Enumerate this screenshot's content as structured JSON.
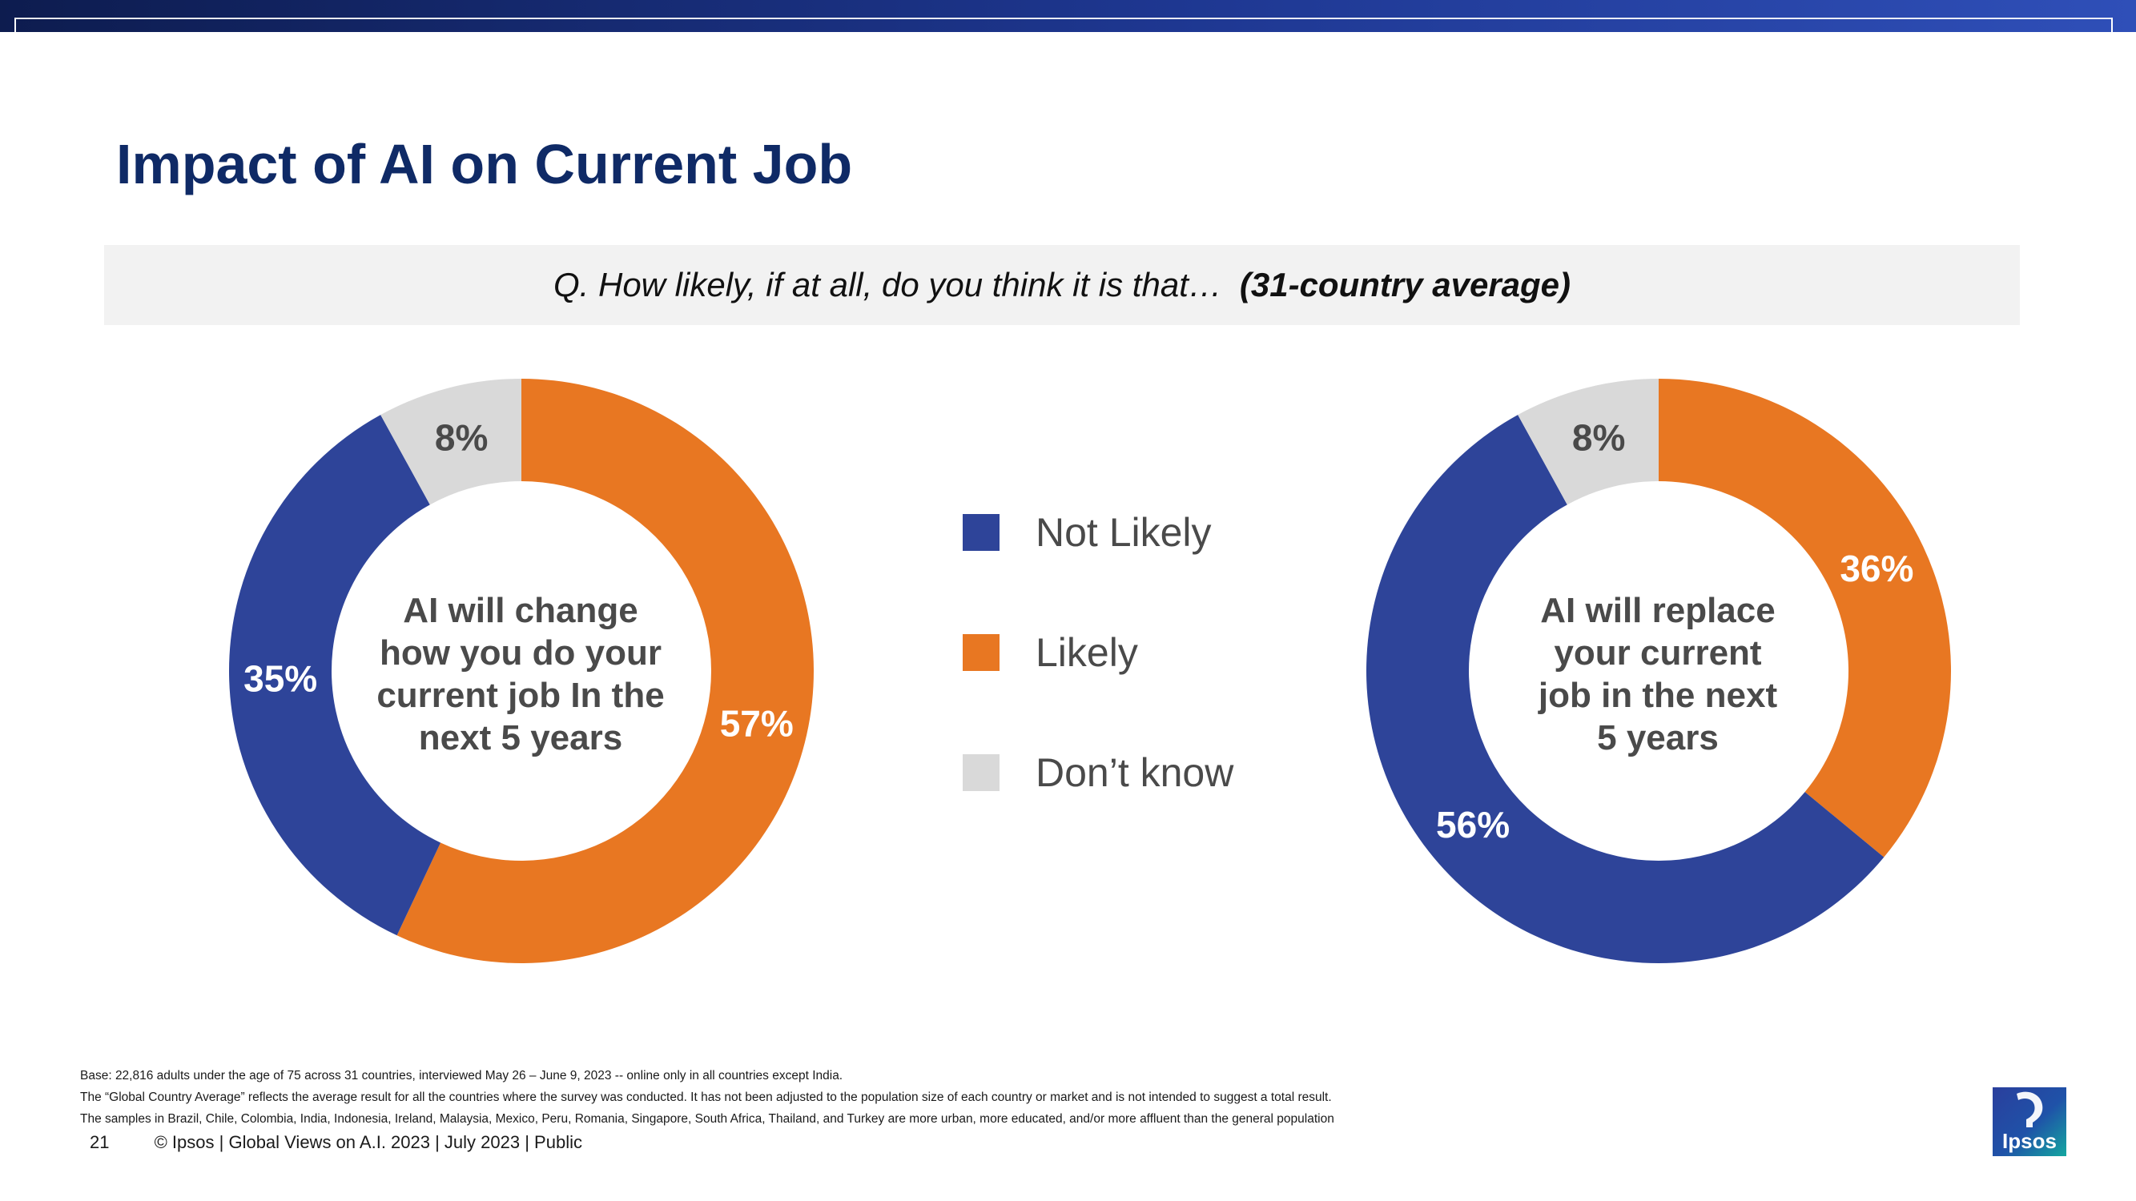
{
  "title": "Impact of AI on Current Job",
  "question": {
    "text": "Q. How likely, if at all, do you think it is that…",
    "emphasis": "(31-country average)"
  },
  "colors": {
    "not_likely": "#2e4499",
    "likely": "#e87722",
    "dont_know": "#d9d9d9",
    "title": "#0f2a66"
  },
  "legend": [
    {
      "label": "Not Likely",
      "color": "#2e4499"
    },
    {
      "label": "Likely",
      "color": "#e87722"
    },
    {
      "label": "Don’t know",
      "color": "#d9d9d9"
    }
  ],
  "chart_data": [
    {
      "type": "pie",
      "variant": "donut",
      "center_label": "AI will change how you do your current job In the next 5 years",
      "center_lines": [
        "AI will change",
        "how you do your",
        "current job In the",
        "next 5 years"
      ],
      "slices": [
        {
          "name": "Likely",
          "value": 57,
          "label": "57%"
        },
        {
          "name": "Not Likely",
          "value": 35,
          "label": "35%"
        },
        {
          "name": "Don’t know",
          "value": 8,
          "label": "8%"
        }
      ]
    },
    {
      "type": "pie",
      "variant": "donut",
      "center_label": "AI will replace your current job in the next 5 years",
      "center_lines": [
        "AI will replace",
        "your current",
        "job in the next",
        "5 years"
      ],
      "slices": [
        {
          "name": "Likely",
          "value": 36,
          "label": "36%"
        },
        {
          "name": "Not Likely",
          "value": 56,
          "label": "56%"
        },
        {
          "name": "Don’t know",
          "value": 8,
          "label": "8%"
        }
      ]
    }
  ],
  "footnotes": [
    "Base: 22,816 adults under the age of 75 across 31 countries, interviewed May 26 – June 9, 2023 -- online only in all countries except India.",
    "The “Global Country Average” reflects the average result for all the countries where the survey was conducted. It has not been adjusted to the population size of each country or market and is not intended to suggest a total result.",
    "The samples in Brazil, Chile, Colombia, India, Indonesia, Ireland, Malaysia, Mexico, Peru, Romania, Singapore, South Africa, Thailand, and Turkey are more urban, more educated, and/or more affluent than the general population"
  ],
  "footer": {
    "page_number": "21",
    "text": "© Ipsos | Global Views on A.I. 2023 | July 2023 | Public"
  },
  "logo": {
    "text": "Ipsos",
    "icon": "ipsos-logo-icon"
  }
}
